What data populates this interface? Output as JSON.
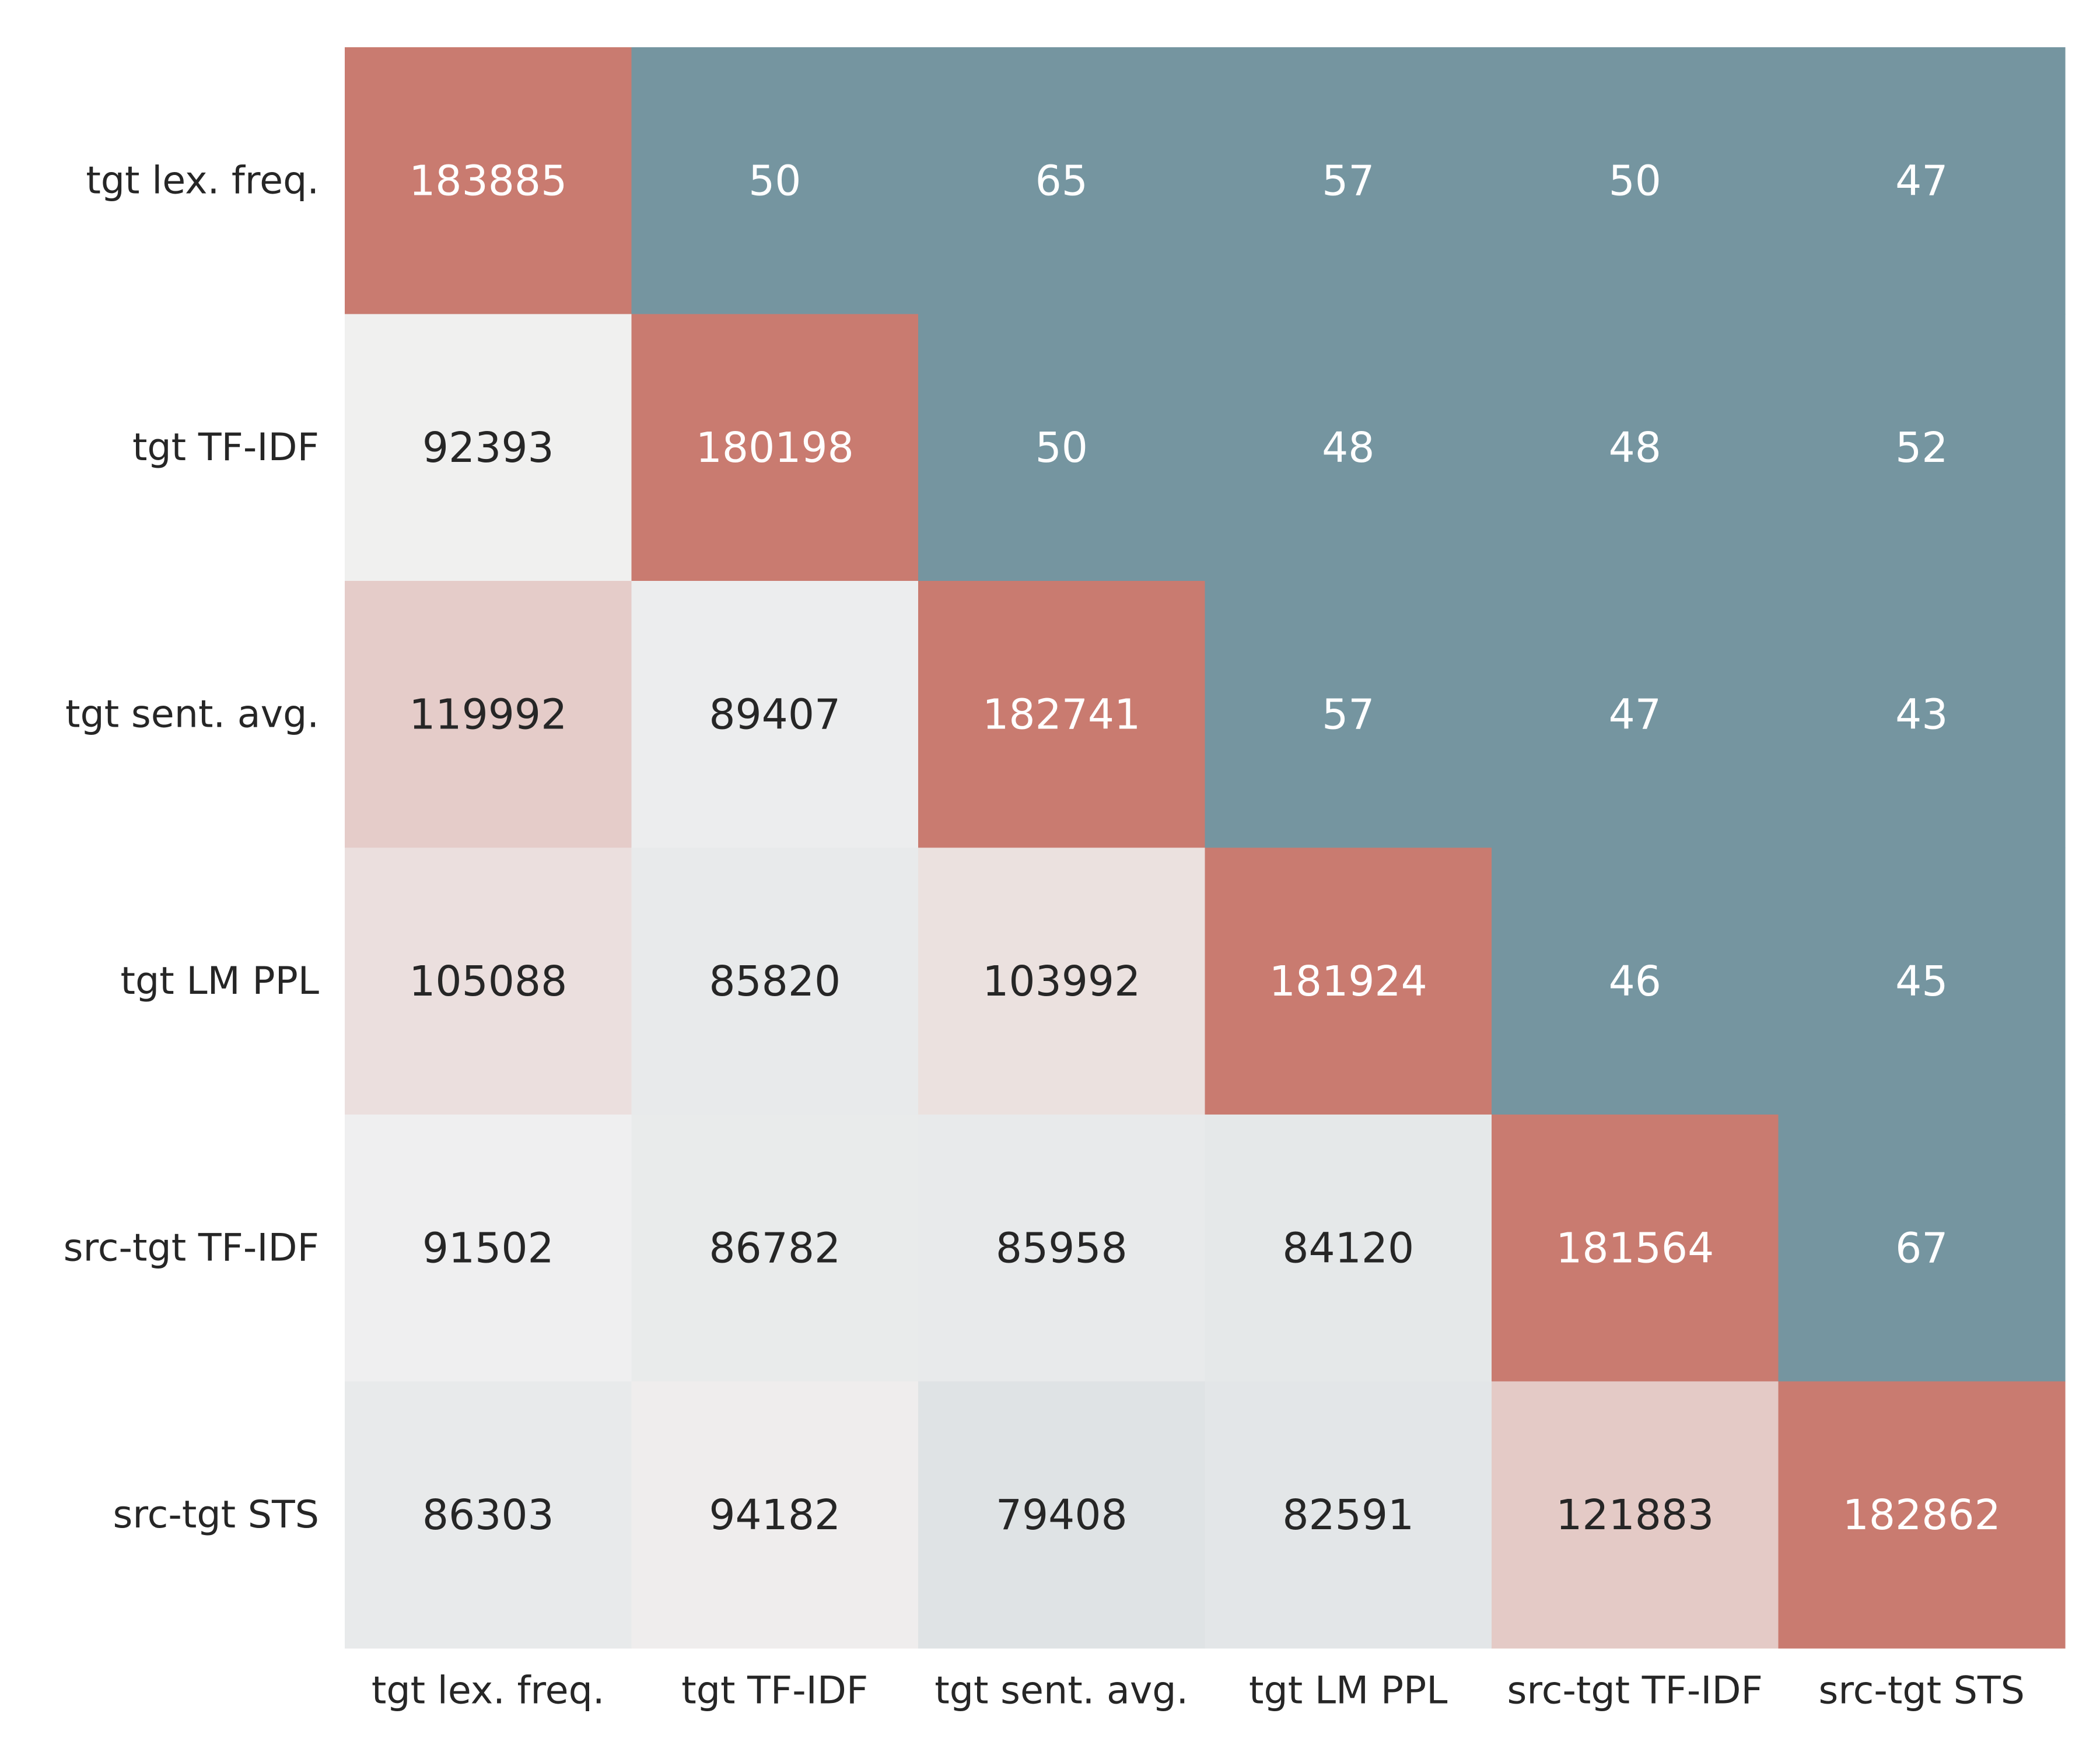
{
  "chart_data": {
    "type": "heatmap",
    "title": "",
    "xlabel": "",
    "ylabel": "",
    "x_labels": [
      "tgt lex. freq.",
      "tgt TF-IDF",
      "tgt sent. avg.",
      "tgt LM PPL",
      "src-tgt TF-IDF",
      "src-tgt STS"
    ],
    "y_labels": [
      "tgt lex. freq.",
      "tgt TF-IDF",
      "tgt sent. avg.",
      "tgt LM PPL",
      "src-tgt TF-IDF",
      "src-tgt STS"
    ],
    "values": [
      [
        183885,
        50,
        65,
        57,
        50,
        47
      ],
      [
        92393,
        180198,
        50,
        48,
        48,
        52
      ],
      [
        119992,
        89407,
        182741,
        57,
        47,
        43
      ],
      [
        105088,
        85820,
        103992,
        181924,
        46,
        45
      ],
      [
        91502,
        86782,
        85958,
        84120,
        181564,
        67
      ],
      [
        86303,
        94182,
        79408,
        82591,
        121883,
        182862
      ]
    ],
    "colors": {
      "diagonal": "#c97b70",
      "upper_triangle": "#7595a0",
      "lower_low": "#dfe3e5",
      "lower_mid": "#f0f0f0",
      "lower_high": "#e4cac6",
      "text_dark": "#262626",
      "text_light": "#ffffff"
    },
    "grid": false,
    "colorbar": false
  }
}
